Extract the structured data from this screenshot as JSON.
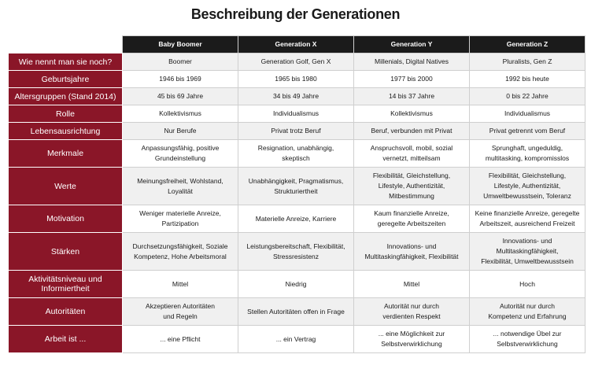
{
  "title": "Beschreibung der Generationen",
  "columns": [
    "Baby Boomer",
    "Generation X",
    "Generation Y",
    "Generation Z"
  ],
  "rows": [
    {
      "label": "Wie nennt man sie noch?",
      "size": "h1",
      "cells": [
        "Boomer",
        "Generation Golf, Gen X",
        "Millenials, Digital Natives",
        "Pluralists, Gen Z"
      ]
    },
    {
      "label": "Geburtsjahre",
      "size": "h1",
      "cells": [
        "1946 bis 1969",
        "1965 bis 1980",
        "1977 bis 2000",
        "1992 bis heute"
      ]
    },
    {
      "label": "Altersgruppen (Stand 2014)",
      "size": "h1",
      "cells": [
        "45 bis 69 Jahre",
        "34 bis 49 Jahre",
        "14 bis 37 Jahre",
        "0 bis 22 Jahre"
      ]
    },
    {
      "label": "Rolle",
      "size": "h1",
      "cells": [
        "Kollektivismus",
        "Individualismus",
        "Kollektivismus",
        "Individualismus"
      ]
    },
    {
      "label": "Lebensausrichtung",
      "size": "h1",
      "cells": [
        "Nur Berufe",
        "Privat trotz Beruf",
        "Beruf, verbunden mit Privat",
        "Privat getrennt vom Beruf"
      ]
    },
    {
      "label": "Merkmale",
      "size": "h2",
      "cells": [
        [
          "Anpassungsfähig, positive",
          "Grundeinstellung"
        ],
        [
          "Resignation, unabhängig,",
          "skeptisch"
        ],
        [
          "Anspruchsvoll, mobil, sozial",
          "vernetzt, mitteilsam"
        ],
        [
          "Sprunghaft, ungeduldig,",
          "multitasking, kompromisslos"
        ]
      ]
    },
    {
      "label": "Werte",
      "size": "h3",
      "cells": [
        [
          "Meinungsfreiheit, Wohlstand,",
          "Loyalität"
        ],
        [
          "Unabhängigkeit, Pragmatismus,",
          "Strukturiertheit"
        ],
        [
          "Flexibilität, Gleichstellung,",
          "Lifestyle, Authentizität,",
          "Mitbestimmung"
        ],
        [
          "Flexibilität, Gleichstellung,",
          "Lifestyle, Authentizität,",
          "Umweltbewusstsein, Toleranz"
        ]
      ]
    },
    {
      "label": "Motivation",
      "size": "h2",
      "cells": [
        [
          "Weniger materielle Anreize,",
          "Partizipation"
        ],
        [
          "Materielle Anreize, Karriere"
        ],
        [
          "Kaum finanzielle Anreize,",
          "geregelte Arbeitszeiten"
        ],
        [
          "Keine finanzielle Anreize, geregelte",
          "Arbeitszeit, ausreichend Freizeit"
        ]
      ]
    },
    {
      "label": "Stärken",
      "size": "h3",
      "cells": [
        [
          "Durchsetzungsfähigkeit, Soziale",
          "Kompetenz, Hohe Arbeitsmoral"
        ],
        [
          "Leistungsbereitschaft, Flexibilität,",
          "Stressresistenz"
        ],
        [
          "Innovations- und",
          "Multitaskingfähigkeit, Flexibilität"
        ],
        [
          "Innovations- und",
          "Multitaskingfähigkeit,",
          "Flexibilität, Umweltbewusstsein"
        ]
      ]
    },
    {
      "label": "Aktivitätsniveau und Informiertheit",
      "size": "h2",
      "cells": [
        "Mittel",
        "Niedrig",
        "Mittel",
        "Hoch"
      ]
    },
    {
      "label": "Autoritäten",
      "size": "h2",
      "cells": [
        [
          "Akzeptieren Autoritäten",
          "und Regeln"
        ],
        [
          "Stellen Autoritäten offen in Frage"
        ],
        [
          "Autorität nur durch",
          "verdienten Respekt"
        ],
        [
          "Autorität nur durch",
          "Kompetenz und Erfahrung"
        ]
      ]
    },
    {
      "label": "Arbeit ist ...",
      "size": "h2",
      "cells": [
        [
          "... eine Pflicht"
        ],
        [
          "... ein Vertrag"
        ],
        [
          "... eine Möglichkeit zur",
          "Selbstverwirklichung"
        ],
        [
          "... notwendige Übel zur",
          "Selbstverwirklichung"
        ]
      ]
    }
  ]
}
